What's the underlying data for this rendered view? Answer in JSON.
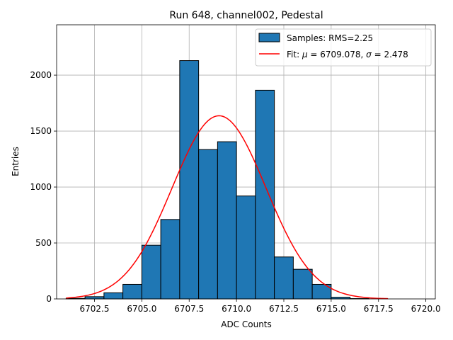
{
  "chart_data": {
    "type": "bar",
    "title": "Run 648, channel002, Pedestal",
    "xlabel": "ADC Counts",
    "ylabel": "Entries",
    "xlim": [
      6700.5,
      6720.5
    ],
    "ylim": [
      0,
      2450
    ],
    "grid": true,
    "legend_position": "top-right",
    "x_ticks": [
      6702.5,
      6705.0,
      6707.5,
      6710.0,
      6712.5,
      6715.0,
      6717.5,
      6720.0
    ],
    "x_tick_labels": [
      "6702.5",
      "6705.0",
      "6707.5",
      "6710.0",
      "6712.5",
      "6715.0",
      "6717.5",
      "6720.0"
    ],
    "y_ticks": [
      0,
      500,
      1000,
      1500,
      2000
    ],
    "y_tick_labels": [
      "0",
      "500",
      "1000",
      "1500",
      "2000"
    ],
    "histogram": {
      "label": "Samples: RMS=2.25",
      "color": "#1f77b4",
      "bins": [
        {
          "left": 6701,
          "right": 6702,
          "count": 5
        },
        {
          "left": 6702,
          "right": 6703,
          "count": 20
        },
        {
          "left": 6703,
          "right": 6704,
          "count": 55
        },
        {
          "left": 6704,
          "right": 6705,
          "count": 130
        },
        {
          "left": 6705,
          "right": 6706,
          "count": 480
        },
        {
          "left": 6706,
          "right": 6707,
          "count": 710
        },
        {
          "left": 6707,
          "right": 6708,
          "count": 2130
        },
        {
          "left": 6708,
          "right": 6709,
          "count": 1335
        },
        {
          "left": 6709,
          "right": 6710,
          "count": 1405
        },
        {
          "left": 6710,
          "right": 6711,
          "count": 920
        },
        {
          "left": 6711,
          "right": 6712,
          "count": 1865
        },
        {
          "left": 6712,
          "right": 6713,
          "count": 375
        },
        {
          "left": 6713,
          "right": 6714,
          "count": 265
        },
        {
          "left": 6714,
          "right": 6715,
          "count": 130
        },
        {
          "left": 6715,
          "right": 6716,
          "count": 15
        },
        {
          "left": 6716,
          "right": 6717,
          "count": 3
        }
      ]
    },
    "fit": {
      "label_prefix": "Fit: ",
      "mu_symbol": "μ",
      "mu_text": " = 6709.078, ",
      "sigma_symbol": "σ",
      "sigma_text": " = 2.478",
      "color": "#ff0000",
      "mu": 6709.078,
      "sigma": 2.478,
      "amplitude": 1637,
      "x_range": [
        6701,
        6718
      ]
    }
  }
}
